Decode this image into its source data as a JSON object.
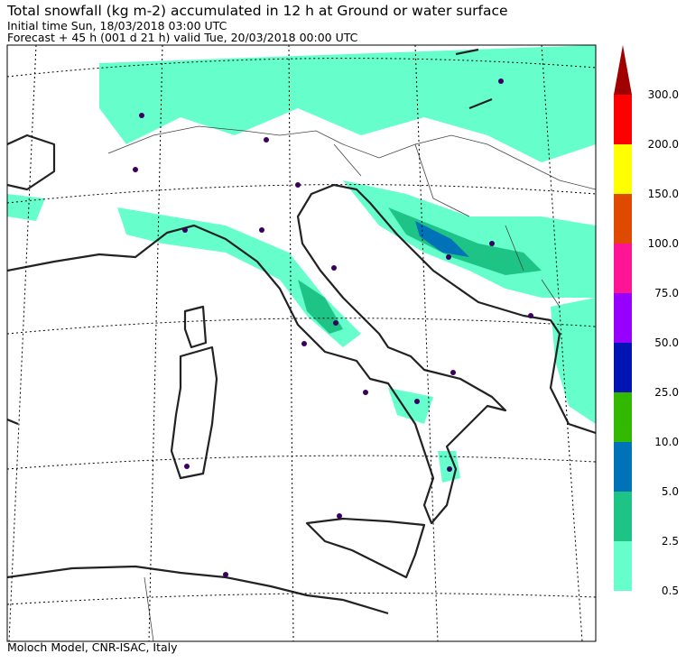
{
  "header": {
    "title": "Total snowfall (kg m-2) accumulated in  12 h at Ground or water surface",
    "initial_time": "Initial time  Sun, 18/03/2018  03:00 UTC",
    "forecast": "Forecast  +  45 h  (001 d 21 h)  valid Tue, 20/03/2018 00:00 UTC"
  },
  "legend": {
    "labels": [
      "0.5",
      "2.5",
      "5.0",
      "10.0",
      "25.0",
      "50.0",
      "75.0",
      "100.0",
      "150.0",
      "200.0",
      "300.0"
    ],
    "colors": [
      "#66ffcc",
      "#1ec486",
      "#0073b8",
      "#33b800",
      "#0014b4",
      "#9600ff",
      "#ff1493",
      "#e04a00",
      "#ffff00",
      "#ff0000",
      "#a00000"
    ]
  },
  "footer": {
    "credit": "Moloch Model, CNR-ISAC, Italy"
  }
}
